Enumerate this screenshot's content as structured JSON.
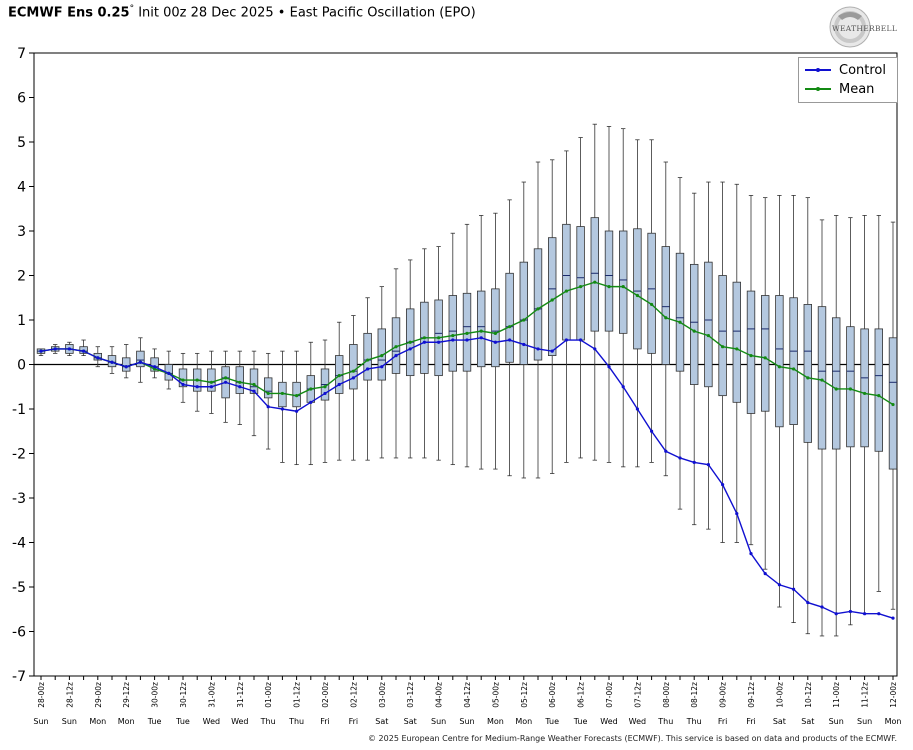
{
  "header": {
    "title_bold": "ECMWF Ens 0.25",
    "title_degree": "°",
    "title_rest": " Init 00z 28 Dec 2025 • East Pacific Oscillation (EPO)"
  },
  "logo": {
    "text": "WEATHERBELL",
    "icon": "weatherbell-logo"
  },
  "footer": {
    "copyright": "© 2025 European Centre for Medium-Range Weather Forecasts (ECMWF). This service is based on data and products of the ECMWF."
  },
  "colors": {
    "control": "#1010d0",
    "mean": "#138a13",
    "box_fill": "#b4c8df",
    "box_stroke": "#333333",
    "median": "#1b2a6b"
  },
  "chart_data": {
    "type": "box",
    "title": "East Pacific Oscillation (EPO)",
    "ylim": [
      -7,
      7
    ],
    "yticks": [
      -7,
      -6,
      -5,
      -4,
      -3,
      -2,
      -1,
      0,
      1,
      2,
      3,
      4,
      5,
      6,
      7
    ],
    "grid": false,
    "legend_position": "top-right",
    "x_labels": [
      "28-00z",
      "28-12z",
      "29-00z",
      "29-12z",
      "30-00z",
      "30-12z",
      "31-00z",
      "31-12z",
      "01-00z",
      "01-12z",
      "02-00z",
      "02-12z",
      "03-00z",
      "03-12z",
      "04-00z",
      "04-12z",
      "05-00z",
      "05-12z",
      "06-00z",
      "06-12z",
      "07-00z",
      "07-12z",
      "08-00z",
      "08-12z",
      "09-00z",
      "09-12z",
      "10-00z",
      "10-12z",
      "11-00z",
      "11-12z",
      "12-00z"
    ],
    "x_days": [
      "Sun",
      "Sun",
      "Mon",
      "Mon",
      "Tue",
      "Tue",
      "Wed",
      "Wed",
      "Thu",
      "Thu",
      "Fri",
      "Fri",
      "Sat",
      "Sat",
      "Sun",
      "Sun",
      "Mon",
      "Mon",
      "Tue",
      "Tue",
      "Wed",
      "Wed",
      "Thu",
      "Thu",
      "Fri",
      "Fri",
      "Sat",
      "Sat",
      "Sun",
      "Sun",
      "Mon"
    ],
    "x_step_hours": 6,
    "series": [
      {
        "name": "Control",
        "values": [
          0.3,
          0.35,
          0.35,
          0.3,
          0.15,
          0.05,
          -0.05,
          0.05,
          -0.05,
          -0.2,
          -0.45,
          -0.5,
          -0.5,
          -0.4,
          -0.5,
          -0.6,
          -0.95,
          -1.0,
          -1.05,
          -0.85,
          -0.65,
          -0.45,
          -0.3,
          -0.1,
          -0.05,
          0.2,
          0.35,
          0.5,
          0.5,
          0.55,
          0.55,
          0.6,
          0.5,
          0.55,
          0.45,
          0.35,
          0.3,
          0.55,
          0.55,
          0.35,
          -0.05,
          -0.5,
          -1.0,
          -1.5,
          -1.95,
          -2.1,
          -2.2,
          -2.25,
          -2.7,
          -3.35,
          -4.25,
          -4.7,
          -4.95,
          -5.05,
          -5.35,
          -5.45,
          -5.6,
          -5.55,
          -5.6,
          -5.6,
          -5.7
        ]
      },
      {
        "name": "Mean",
        "values": [
          0.3,
          0.35,
          0.35,
          0.3,
          0.15,
          0.05,
          -0.05,
          0.05,
          -0.1,
          -0.2,
          -0.35,
          -0.35,
          -0.4,
          -0.3,
          -0.4,
          -0.45,
          -0.65,
          -0.65,
          -0.7,
          -0.55,
          -0.5,
          -0.25,
          -0.15,
          0.1,
          0.2,
          0.4,
          0.5,
          0.6,
          0.6,
          0.65,
          0.7,
          0.75,
          0.7,
          0.85,
          1.0,
          1.25,
          1.45,
          1.65,
          1.75,
          1.85,
          1.75,
          1.75,
          1.55,
          1.35,
          1.05,
          0.95,
          0.75,
          0.65,
          0.4,
          0.35,
          0.2,
          0.15,
          -0.05,
          -0.1,
          -0.3,
          -0.35,
          -0.55,
          -0.55,
          -0.65,
          -0.7,
          -0.9
        ]
      }
    ],
    "boxes": {
      "min": [
        0.2,
        0.25,
        0.2,
        0.2,
        -0.05,
        -0.2,
        -0.3,
        -0.4,
        -0.3,
        -0.55,
        -0.85,
        -1.05,
        -1.1,
        -1.3,
        -1.35,
        -1.6,
        -1.9,
        -2.2,
        -2.25,
        -2.25,
        -2.2,
        -2.15,
        -2.15,
        -2.15,
        -2.1,
        -2.1,
        -2.1,
        -2.1,
        -2.15,
        -2.25,
        -2.3,
        -2.35,
        -2.35,
        -2.5,
        -2.55,
        -2.55,
        -2.45,
        -2.2,
        -2.1,
        -2.15,
        -2.2,
        -2.3,
        -2.3,
        -2.2,
        -2.5,
        -3.25,
        -3.6,
        -3.7,
        -4.0,
        -4.0,
        -4.05,
        -4.6,
        -5.45,
        -5.8,
        -6.05,
        -6.1,
        -6.1,
        -5.85,
        -5.6,
        -5.1,
        -5.5
      ],
      "q1": [
        0.25,
        0.3,
        0.25,
        0.25,
        0.1,
        -0.05,
        -0.15,
        -0.05,
        -0.15,
        -0.35,
        -0.5,
        -0.6,
        -0.6,
        -0.75,
        -0.65,
        -0.65,
        -0.75,
        -0.95,
        -0.95,
        -0.85,
        -0.8,
        -0.65,
        -0.55,
        -0.35,
        -0.35,
        -0.2,
        -0.25,
        -0.2,
        -0.25,
        -0.15,
        -0.15,
        -0.05,
        -0.05,
        0.05,
        0.0,
        0.1,
        0.2,
        0.55,
        0.55,
        0.75,
        0.75,
        0.7,
        0.35,
        0.25,
        0.0,
        -0.15,
        -0.45,
        -0.5,
        -0.7,
        -0.85,
        -1.1,
        -1.05,
        -1.4,
        -1.35,
        -1.75,
        -1.9,
        -1.9,
        -1.85,
        -1.85,
        -1.95,
        -2.35
      ],
      "median": [
        0.3,
        0.35,
        0.35,
        0.3,
        0.15,
        0.05,
        -0.05,
        0.1,
        -0.05,
        -0.2,
        -0.35,
        -0.35,
        -0.4,
        -0.3,
        -0.4,
        -0.5,
        -0.6,
        -0.65,
        -0.7,
        -0.55,
        -0.45,
        -0.25,
        -0.15,
        0.1,
        0.1,
        0.3,
        0.5,
        0.6,
        0.7,
        0.75,
        0.85,
        0.85,
        0.75,
        0.85,
        1.0,
        1.25,
        1.7,
        2.0,
        1.95,
        2.05,
        2.0,
        1.9,
        1.65,
        1.7,
        1.3,
        1.05,
        0.95,
        1.0,
        0.75,
        0.75,
        0.8,
        0.8,
        0.35,
        0.3,
        0.3,
        -0.15,
        -0.15,
        -0.15,
        -0.3,
        -0.25,
        -0.4
      ],
      "q3": [
        0.35,
        0.4,
        0.45,
        0.4,
        0.25,
        0.2,
        0.15,
        0.3,
        0.15,
        0.0,
        -0.1,
        -0.1,
        -0.1,
        -0.05,
        -0.05,
        -0.1,
        -0.3,
        -0.4,
        -0.4,
        -0.25,
        -0.1,
        0.2,
        0.45,
        0.7,
        0.8,
        1.05,
        1.25,
        1.4,
        1.45,
        1.55,
        1.6,
        1.65,
        1.7,
        2.05,
        2.3,
        2.6,
        2.85,
        3.15,
        3.1,
        3.3,
        3.0,
        3.0,
        3.05,
        2.95,
        2.65,
        2.5,
        2.25,
        2.3,
        2.0,
        1.85,
        1.65,
        1.55,
        1.55,
        1.5,
        1.35,
        1.3,
        1.05,
        0.85,
        0.8,
        0.8,
        0.6
      ],
      "max": [
        0.35,
        0.45,
        0.5,
        0.55,
        0.4,
        0.4,
        0.45,
        0.6,
        0.35,
        0.3,
        0.25,
        0.25,
        0.3,
        0.3,
        0.3,
        0.3,
        0.25,
        0.3,
        0.3,
        0.5,
        0.55,
        0.95,
        1.1,
        1.5,
        1.75,
        2.15,
        2.35,
        2.6,
        2.65,
        2.95,
        3.15,
        3.35,
        3.4,
        3.7,
        4.1,
        4.55,
        4.6,
        4.8,
        5.1,
        5.4,
        5.35,
        5.3,
        5.05,
        5.05,
        4.55,
        4.2,
        3.85,
        4.1,
        4.1,
        4.05,
        3.8,
        3.75,
        3.8,
        3.8,
        3.75,
        3.25,
        3.35,
        3.3,
        3.35,
        3.35,
        3.2
      ]
    }
  }
}
